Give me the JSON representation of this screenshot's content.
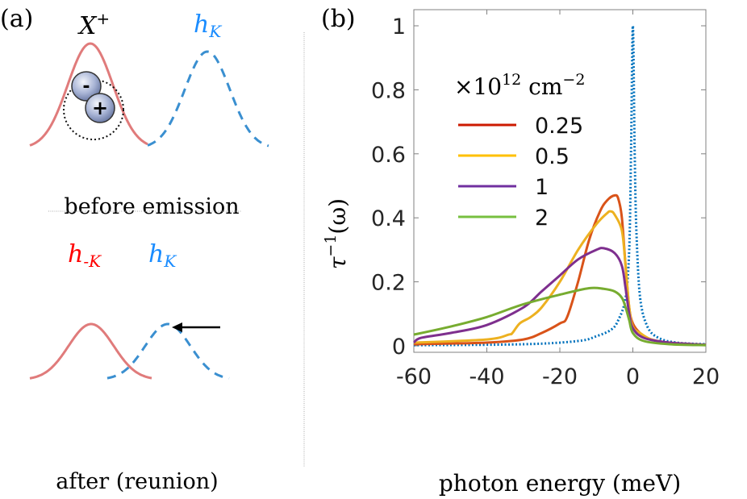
{
  "panel_a": {
    "label": "(a)",
    "top": {
      "trion_label": "X",
      "trion_sup": "+",
      "hole_label": "h",
      "hole_sub": "K",
      "caption": "before emission",
      "electron_sign": "-",
      "hole_sign": "+"
    },
    "bottom": {
      "left_label": "h",
      "left_sub": "-K",
      "right_label": "h",
      "right_sub": "K",
      "caption": "after (reunion)"
    },
    "colors": {
      "red_curve": "#e07b7b",
      "blue_curve": "#3a8fd0",
      "red_text": "#ff0000",
      "blue_text": "#1a8cff"
    }
  },
  "chart_data": {
    "type": "line",
    "panel_label": "(b)",
    "xlabel": "photon energy (meV)",
    "ylabel": "τ⁻¹(ω)",
    "ylabel_base": "τ",
    "ylabel_sup": "−1",
    "ylabel_arg": "(ω)",
    "xlim": [
      -60,
      20
    ],
    "ylim": [
      0,
      1.05
    ],
    "xticks": [
      -60,
      -40,
      -20,
      0,
      20
    ],
    "yticks": [
      0,
      0.2,
      0.4,
      0.6,
      0.8,
      1
    ],
    "ytick_labels": [
      "0",
      "0.2",
      "0.4",
      "0.6",
      "0.8",
      "1"
    ],
    "xtick_labels": [
      "-60",
      "-40",
      "-20",
      "0",
      "20"
    ],
    "legend": {
      "title_prefix": "×10",
      "title_exp": "12",
      "title_unit": " cm",
      "title_unit_exp": "−2",
      "placement": "upper-center"
    },
    "series": [
      {
        "name": "0.25",
        "color": "#d95319",
        "legend_color": "#cc1a00",
        "style": "solid",
        "x": [
          -60,
          -40,
          -30,
          -25,
          -20,
          -18,
          -15,
          -12,
          -9,
          -7,
          -5,
          -4,
          -3,
          -2,
          -1,
          0,
          2,
          5,
          10,
          20
        ],
        "y": [
          0.005,
          0.01,
          0.02,
          0.04,
          0.07,
          0.09,
          0.2,
          0.33,
          0.42,
          0.455,
          0.47,
          0.46,
          0.4,
          0.25,
          0.12,
          0.07,
          0.04,
          0.02,
          0.01,
          0.003
        ]
      },
      {
        "name": "0.5",
        "color": "#edb120",
        "legend_color": "#ffc000",
        "style": "solid",
        "x": [
          -60,
          -40,
          -34,
          -33,
          -31,
          -28,
          -25,
          -20,
          -15,
          -10,
          -7,
          -6,
          -5,
          -3,
          -2,
          -1,
          0,
          2,
          5,
          10,
          20
        ],
        "y": [
          0.01,
          0.02,
          0.035,
          0.04,
          0.07,
          0.09,
          0.12,
          0.2,
          0.3,
          0.38,
          0.415,
          0.42,
          0.41,
          0.36,
          0.25,
          0.12,
          0.06,
          0.04,
          0.02,
          0.008,
          0.003
        ]
      },
      {
        "name": "1",
        "color": "#7e2f8e",
        "legend_color": "#7030a0",
        "style": "solid",
        "x": [
          -60,
          -58,
          -50,
          -40,
          -30,
          -25,
          -20,
          -15,
          -10,
          -8,
          -5,
          -3,
          -2,
          -1,
          0,
          3,
          10,
          20
        ],
        "y": [
          0.01,
          0.025,
          0.04,
          0.065,
          0.12,
          0.17,
          0.22,
          0.27,
          0.3,
          0.305,
          0.29,
          0.25,
          0.18,
          0.1,
          0.055,
          0.025,
          0.01,
          0.003
        ]
      },
      {
        "name": "2",
        "color": "#77ac30",
        "legend_color": "#77c040",
        "style": "solid",
        "x": [
          -60,
          -50,
          -40,
          -30,
          -20,
          -12,
          -8,
          -5,
          -3,
          -2,
          -1,
          0,
          3,
          10,
          20
        ],
        "y": [
          0.035,
          0.06,
          0.09,
          0.13,
          0.16,
          0.18,
          0.178,
          0.17,
          0.15,
          0.12,
          0.08,
          0.04,
          0.015,
          0.005,
          0.002
        ]
      },
      {
        "name": "",
        "color": "#0072bd",
        "legend_color": "#0072bd",
        "style": "dotted",
        "x": [
          -60,
          -30,
          -15,
          -10,
          -6,
          -4,
          -2,
          -1,
          -0.5,
          0,
          0.5,
          1,
          2,
          4,
          7,
          12,
          20
        ],
        "y": [
          0.002,
          0.005,
          0.015,
          0.03,
          0.05,
          0.08,
          0.15,
          0.3,
          0.6,
          1.0,
          0.6,
          0.35,
          0.15,
          0.06,
          0.025,
          0.01,
          0.005
        ]
      }
    ]
  }
}
